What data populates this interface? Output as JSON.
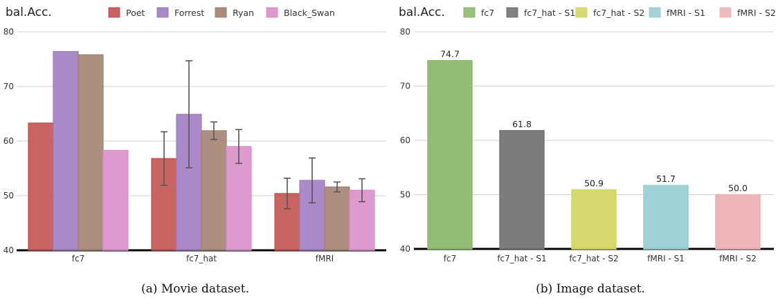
{
  "chart_data": [
    {
      "type": "bar",
      "ylabel": "bal.Acc.",
      "ylim": [
        40,
        80
      ],
      "yticks": [
        40,
        50,
        60,
        70,
        80
      ],
      "grid": true,
      "legend_position": "top",
      "categories": [
        "fc7",
        "fc7_hat",
        "fMRI"
      ],
      "series": [
        {
          "name": "Poet",
          "color": "#c0504d",
          "values": [
            63.3,
            56.8,
            50.4
          ],
          "errors": [
            null,
            4.9,
            2.8
          ]
        },
        {
          "name": "Forrest",
          "color": "#9e7bbf",
          "values": [
            76.4,
            64.9,
            52.8
          ],
          "errors": [
            null,
            9.8,
            4.1
          ]
        },
        {
          "name": "Ryan",
          "color": "#a08070",
          "values": [
            75.8,
            61.9,
            51.6
          ],
          "errors": [
            null,
            1.6,
            0.9
          ]
        },
        {
          "name": "Black_Swan",
          "color": "#d98cc8",
          "values": [
            58.3,
            59.0,
            51.0
          ],
          "errors": [
            null,
            3.1,
            2.1
          ]
        }
      ],
      "caption": "(a)  Movie dataset."
    },
    {
      "type": "bar",
      "ylabel": "bal.Acc.",
      "ylim": [
        40,
        80
      ],
      "yticks": [
        40,
        50,
        60,
        70,
        80
      ],
      "grid": true,
      "legend_position": "top",
      "categories": [
        "fc7",
        "fc7_hat - S1",
        "fc7_hat - S2",
        "fMRI - S1",
        "fMRI - S2"
      ],
      "values": [
        74.7,
        61.8,
        50.9,
        51.7,
        50.0
      ],
      "value_labels": [
        "74.7",
        "61.8",
        "50.9",
        "51.7",
        "50.0"
      ],
      "colors": [
        "#8db86e",
        "#767474",
        "#d2d665",
        "#99ced3",
        "#ecb1b1"
      ],
      "legend": [
        "fc7",
        "fc7_hat - S1",
        "fc7_hat - S2",
        "fMRI - S1",
        "fMRI - S2"
      ],
      "caption": "(b)  Image dataset."
    }
  ]
}
